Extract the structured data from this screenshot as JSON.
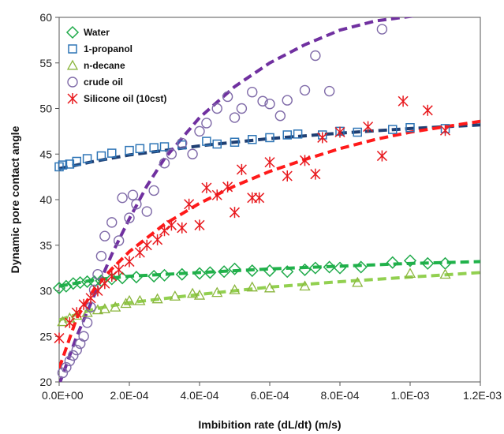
{
  "chart_data": {
    "type": "scatter",
    "xlabel": "Imbibition rate (dL/dt) (m/s)",
    "ylabel": "Dynamic pore contact angle",
    "xlim": [
      0,
      0.0012
    ],
    "ylim": [
      20,
      60
    ],
    "x_ticks": [
      0,
      0.0002,
      0.0004,
      0.0006,
      0.0008,
      0.001,
      0.0012
    ],
    "x_tick_labels": [
      "0.0E+00",
      "2.0E-04",
      "4.0E-04",
      "6.0E-04",
      "8.0E-04",
      "1.0E-03",
      "1.2E-03"
    ],
    "y_ticks": [
      20,
      25,
      30,
      35,
      40,
      45,
      50,
      55,
      60
    ],
    "y_tick_labels": [
      "20",
      "25",
      "30",
      "35",
      "40",
      "45",
      "50",
      "55",
      "60"
    ],
    "grid": false,
    "legend_position": "top-left",
    "series": [
      {
        "name": "Water",
        "marker": "diamond",
        "color": "#1faa4a",
        "points": [
          [
            0.0,
            30.3
          ],
          [
            2e-05,
            30.5
          ],
          [
            4e-05,
            30.8
          ],
          [
            6e-05,
            30.9
          ],
          [
            8e-05,
            31.0
          ],
          [
            0.0001,
            31.0
          ],
          [
            0.00012,
            31.1
          ],
          [
            0.00015,
            31.3
          ],
          [
            0.00018,
            31.4
          ],
          [
            0.00022,
            31.5
          ],
          [
            0.00027,
            31.6
          ],
          [
            0.0003,
            31.7
          ],
          [
            0.00035,
            31.8
          ],
          [
            0.0004,
            31.9
          ],
          [
            0.00043,
            32.0
          ],
          [
            0.00047,
            32.1
          ],
          [
            0.0005,
            32.4
          ],
          [
            0.00055,
            32.2
          ],
          [
            0.0006,
            32.2
          ],
          [
            0.00065,
            32.1
          ],
          [
            0.0007,
            32.3
          ],
          [
            0.00073,
            32.5
          ],
          [
            0.00077,
            32.6
          ],
          [
            0.0008,
            32.5
          ],
          [
            0.00086,
            32.6
          ],
          [
            0.00095,
            33.1
          ],
          [
            0.001,
            33.3
          ],
          [
            0.00105,
            33.0
          ],
          [
            0.0011,
            33.0
          ]
        ]
      },
      {
        "name": "1-propanol",
        "marker": "square",
        "color": "#2e75b6",
        "points": [
          [
            0.0,
            43.6
          ],
          [
            1e-05,
            43.8
          ],
          [
            3e-05,
            43.9
          ],
          [
            5e-05,
            44.2
          ],
          [
            8e-05,
            44.5
          ],
          [
            0.00012,
            44.8
          ],
          [
            0.00015,
            45.1
          ],
          [
            0.0002,
            45.4
          ],
          [
            0.00023,
            45.6
          ],
          [
            0.00027,
            45.7
          ],
          [
            0.0003,
            45.8
          ],
          [
            0.00035,
            46.0
          ],
          [
            0.00042,
            46.4
          ],
          [
            0.00045,
            46.1
          ],
          [
            0.0005,
            46.3
          ],
          [
            0.00055,
            46.6
          ],
          [
            0.0006,
            46.8
          ],
          [
            0.00065,
            47.1
          ],
          [
            0.00068,
            47.2
          ],
          [
            0.00075,
            47.1
          ],
          [
            0.0008,
            47.5
          ],
          [
            0.00085,
            47.4
          ],
          [
            0.00095,
            47.7
          ],
          [
            0.001,
            47.9
          ],
          [
            0.0011,
            47.8
          ]
        ]
      },
      {
        "name": "n-decane",
        "marker": "triangle",
        "color": "#8ab53c",
        "points": [
          [
            1e-05,
            26.6
          ],
          [
            3e-05,
            27.0
          ],
          [
            5e-05,
            27.3
          ],
          [
            8e-05,
            27.6
          ],
          [
            0.00011,
            27.9
          ],
          [
            0.00013,
            28.0
          ],
          [
            0.00016,
            28.2
          ],
          [
            0.00019,
            28.6
          ],
          [
            0.0002,
            28.9
          ],
          [
            0.00023,
            28.9
          ],
          [
            0.00028,
            29.1
          ],
          [
            0.00033,
            29.4
          ],
          [
            0.00038,
            29.7
          ],
          [
            0.0004,
            29.5
          ],
          [
            0.00045,
            29.8
          ],
          [
            0.0005,
            30.1
          ],
          [
            0.00055,
            30.4
          ],
          [
            0.0006,
            30.3
          ],
          [
            0.0007,
            30.5
          ],
          [
            0.00085,
            30.9
          ],
          [
            0.001,
            31.9
          ],
          [
            0.0011,
            31.8
          ]
        ]
      },
      {
        "name": "crude oil",
        "marker": "circle",
        "color": "#7f6aa8",
        "points": [
          [
            1e-05,
            21.0
          ],
          [
            2e-05,
            21.6
          ],
          [
            3e-05,
            22.3
          ],
          [
            4e-05,
            22.9
          ],
          [
            5e-05,
            23.5
          ],
          [
            6e-05,
            24.2
          ],
          [
            7e-05,
            25.0
          ],
          [
            8e-05,
            26.5
          ],
          [
            9e-05,
            28.2
          ],
          [
            0.0001,
            30.1
          ],
          [
            0.00011,
            31.8
          ],
          [
            0.00012,
            33.8
          ],
          [
            0.00013,
            36.0
          ],
          [
            0.00015,
            37.5
          ],
          [
            0.00017,
            35.5
          ],
          [
            0.00018,
            40.2
          ],
          [
            0.0002,
            38.0
          ],
          [
            0.00021,
            40.5
          ],
          [
            0.00022,
            39.5
          ],
          [
            0.00025,
            38.7
          ],
          [
            0.00027,
            41.0
          ],
          [
            0.0003,
            44.0
          ],
          [
            0.00032,
            45.0
          ],
          [
            0.00035,
            46.2
          ],
          [
            0.00038,
            45.0
          ],
          [
            0.0004,
            47.5
          ],
          [
            0.00042,
            48.4
          ],
          [
            0.00045,
            50.0
          ],
          [
            0.00048,
            51.3
          ],
          [
            0.0005,
            49.0
          ],
          [
            0.00052,
            50.0
          ],
          [
            0.00055,
            51.8
          ],
          [
            0.00058,
            50.8
          ],
          [
            0.0006,
            50.5
          ],
          [
            0.00063,
            49.2
          ],
          [
            0.00065,
            50.9
          ],
          [
            0.0007,
            52.0
          ],
          [
            0.00073,
            55.8
          ],
          [
            0.00077,
            51.9
          ],
          [
            0.00092,
            58.7
          ]
        ]
      },
      {
        "name": "Silicone oil (10cst)",
        "marker": "asterisk",
        "color": "#e8191e",
        "points": [
          [
            0.0,
            24.8
          ],
          [
            3e-05,
            26.5
          ],
          [
            5e-05,
            27.6
          ],
          [
            7e-05,
            28.5
          ],
          [
            9e-05,
            29.2
          ],
          [
            0.00011,
            30.0
          ],
          [
            0.00013,
            30.8
          ],
          [
            0.00015,
            31.6
          ],
          [
            0.00017,
            32.3
          ],
          [
            0.0002,
            33.2
          ],
          [
            0.00023,
            34.2
          ],
          [
            0.00025,
            35.0
          ],
          [
            0.00028,
            35.6
          ],
          [
            0.0003,
            36.6
          ],
          [
            0.00032,
            37.2
          ],
          [
            0.00035,
            36.9
          ],
          [
            0.00037,
            39.5
          ],
          [
            0.0004,
            37.2
          ],
          [
            0.00042,
            41.3
          ],
          [
            0.00045,
            40.5
          ],
          [
            0.00048,
            41.4
          ],
          [
            0.0005,
            38.6
          ],
          [
            0.00052,
            43.3
          ],
          [
            0.00055,
            40.2
          ],
          [
            0.00057,
            40.2
          ],
          [
            0.0006,
            44.1
          ],
          [
            0.00065,
            42.6
          ],
          [
            0.0007,
            44.3
          ],
          [
            0.00073,
            42.8
          ],
          [
            0.00075,
            46.8
          ],
          [
            0.0008,
            47.4
          ],
          [
            0.00088,
            48.0
          ],
          [
            0.00092,
            44.8
          ],
          [
            0.00098,
            50.8
          ],
          [
            0.00105,
            49.8
          ],
          [
            0.0011,
            47.6
          ]
        ]
      }
    ],
    "trendlines": [
      {
        "series": "Water",
        "color": "#20b24a",
        "points": [
          [
            0.0,
            30.5
          ],
          [
            0.0001,
            31.2
          ],
          [
            0.0002,
            31.6
          ],
          [
            0.0004,
            32.0
          ],
          [
            0.0006,
            32.4
          ],
          [
            0.0008,
            32.7
          ],
          [
            0.001,
            33.0
          ],
          [
            0.0012,
            33.2
          ]
        ]
      },
      {
        "series": "1-propanol",
        "color": "#1f3f73",
        "points": [
          [
            0.0,
            43.4
          ],
          [
            0.0001,
            44.2
          ],
          [
            0.0002,
            44.9
          ],
          [
            0.0004,
            45.9
          ],
          [
            0.0006,
            46.7
          ],
          [
            0.0008,
            47.3
          ],
          [
            0.001,
            47.8
          ],
          [
            0.0012,
            48.2
          ]
        ]
      },
      {
        "series": "n-decane",
        "color": "#92d050",
        "points": [
          [
            0.0,
            26.8
          ],
          [
            0.0001,
            28.0
          ],
          [
            0.0002,
            28.7
          ],
          [
            0.0004,
            29.6
          ],
          [
            0.0006,
            30.4
          ],
          [
            0.0008,
            31.0
          ],
          [
            0.001,
            31.5
          ],
          [
            0.0012,
            32.0
          ]
        ]
      },
      {
        "series": "crude oil",
        "color": "#7030a0",
        "points": [
          [
            0.0,
            19.7
          ],
          [
            5e-05,
            25.0
          ],
          [
            0.0001,
            29.5
          ],
          [
            0.00015,
            34.0
          ],
          [
            0.0002,
            37.9
          ],
          [
            0.00025,
            41.5
          ],
          [
            0.0003,
            44.5
          ],
          [
            0.0004,
            49.0
          ],
          [
            0.0005,
            52.4
          ],
          [
            0.0006,
            55.0
          ],
          [
            0.0007,
            57.0
          ],
          [
            0.0008,
            58.6
          ],
          [
            0.0009,
            59.6
          ],
          [
            0.00098,
            60.0
          ],
          [
            0.0011,
            60.6
          ],
          [
            0.0012,
            61.0
          ]
        ]
      },
      {
        "series": "Silicone oil (10cst)",
        "color": "#ff1a1a",
        "points": [
          [
            0.0,
            21.5
          ],
          [
            5e-05,
            27.0
          ],
          [
            0.0001,
            30.2
          ],
          [
            0.00015,
            32.4
          ],
          [
            0.0002,
            34.3
          ],
          [
            0.0003,
            37.3
          ],
          [
            0.0004,
            39.6
          ],
          [
            0.0005,
            41.5
          ],
          [
            0.0006,
            43.1
          ],
          [
            0.0007,
            44.4
          ],
          [
            0.0008,
            45.6
          ],
          [
            0.0009,
            46.6
          ],
          [
            0.001,
            47.4
          ],
          [
            0.0011,
            48.0
          ],
          [
            0.0012,
            48.6
          ]
        ]
      }
    ]
  }
}
